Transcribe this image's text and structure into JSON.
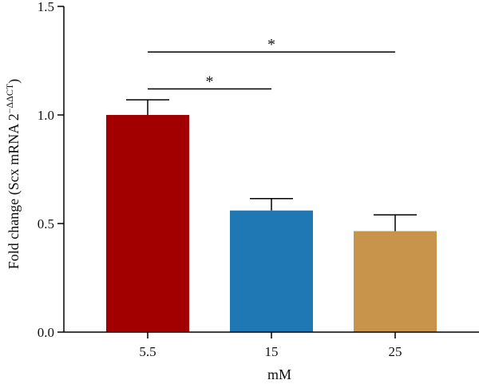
{
  "chart_data": {
    "type": "bar",
    "xlabel": "mM",
    "ylabel": {
      "prefix": "Fold change (Scx mRNA 2",
      "superscript": "−ΔΔCT",
      "suffix": ")"
    },
    "ylim": [
      0,
      1.5
    ],
    "yticks": [
      "0.0",
      "0.5",
      "1.0",
      "1.5"
    ],
    "categories": [
      "5.5",
      "15",
      "25"
    ],
    "values": [
      1.0,
      0.56,
      0.465
    ],
    "errors": [
      0.07,
      0.055,
      0.075
    ],
    "colors": [
      "#a20000",
      "#1f77b4",
      "#c8944b"
    ],
    "significance": [
      {
        "from": 0,
        "to": 1,
        "label": "*",
        "level": 1.12
      },
      {
        "from": 0,
        "to": 2,
        "label": "*",
        "level": 1.29
      }
    ],
    "grid": false
  }
}
